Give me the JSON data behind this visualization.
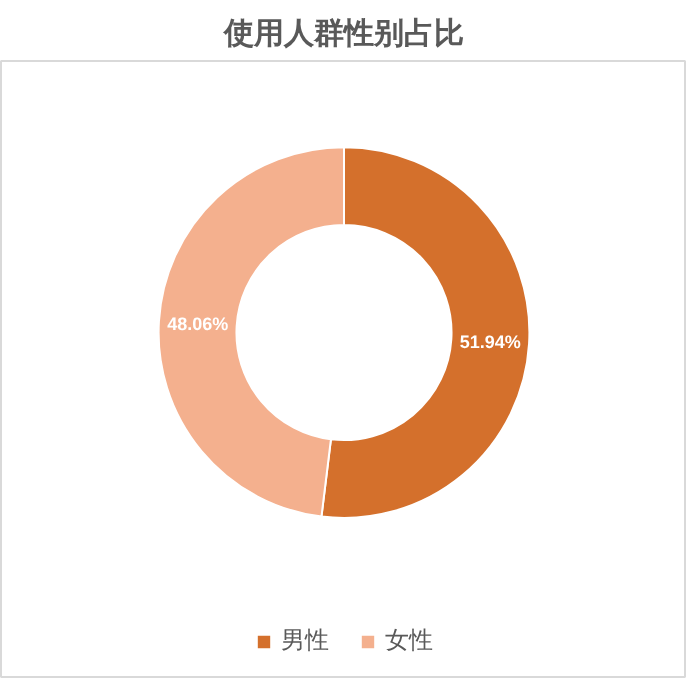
{
  "chart_data": {
    "type": "donut",
    "title": "使用人群性别占比",
    "categories": [
      "男性",
      "女性"
    ],
    "values": [
      51.94,
      48.06
    ],
    "colors": [
      "#d4702c",
      "#f4b08e"
    ],
    "value_labels": [
      "51.94%",
      "48.06%"
    ],
    "legend": "bottom"
  }
}
